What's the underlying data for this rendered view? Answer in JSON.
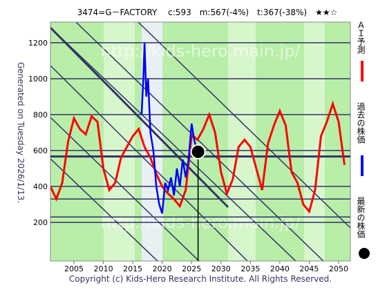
{
  "chart_data": {
    "type": "line",
    "title": "3474=G－FACTORY　 c:593　m:567(-4%)　t:367(-38%)　★★☆",
    "watermark": "http://kids-hero.main.jp/",
    "generated": "Generated on Tuesday 2026/1/13.",
    "copyright": "Copyright (c) Kids-Hero Research Institute. All Rights Reserved.",
    "xlim": [
      2001,
      2052
    ],
    "xticks": [
      2005,
      2010,
      2015,
      2020,
      2025,
      2030,
      2035,
      2040,
      2045,
      2050
    ],
    "ylim": [
      -15,
      1315
    ],
    "yticks": [
      200,
      400,
      600,
      800,
      1000,
      1200
    ],
    "hlines": [
      567,
      330,
      230
    ],
    "series": [
      {
        "name": "ＡＩ予測",
        "color": "#ff0000",
        "x": [
          2001,
          2002,
          2003,
          2004,
          2005,
          2006,
          2007,
          2008,
          2009,
          2010,
          2011,
          2012,
          2013,
          2014,
          2015,
          2016,
          2017,
          2018,
          2019,
          2020,
          2021,
          2022,
          2023,
          2024,
          2025,
          2026,
          2027,
          2028,
          2029,
          2030,
          2031,
          2032,
          2033,
          2034,
          2035,
          2036,
          2037,
          2038,
          2039,
          2040,
          2041,
          2042,
          2043,
          2044,
          2045,
          2046,
          2047,
          2048,
          2049,
          2050,
          2051
        ],
        "values": [
          400,
          330,
          420,
          650,
          780,
          720,
          690,
          790,
          760,
          500,
          380,
          420,
          560,
          620,
          680,
          720,
          620,
          560,
          470,
          400,
          360,
          330,
          290,
          380,
          680,
          660,
          720,
          800,
          700,
          480,
          360,
          440,
          620,
          660,
          620,
          500,
          380,
          640,
          740,
          820,
          740,
          480,
          420,
          300,
          260,
          380,
          680,
          760,
          860,
          760,
          520
        ]
      },
      {
        "name": "過去の株価",
        "color": "#0000ff",
        "x": [
          2016.5,
          2016.8,
          2017,
          2017.3,
          2017.6,
          2018,
          2018.5,
          2019,
          2019.5,
          2020,
          2020.5,
          2021,
          2021.5,
          2022,
          2022.5,
          2023,
          2023.5,
          2024,
          2024.5,
          2025,
          2025.5,
          2026.1
        ],
        "values": [
          800,
          1000,
          1200,
          900,
          1000,
          700,
          600,
          400,
          300,
          250,
          420,
          380,
          450,
          350,
          500,
          400,
          550,
          450,
          550,
          750,
          650,
          593
        ]
      }
    ],
    "latest": {
      "name": "最新の株価",
      "x": 2026.1,
      "value": 593,
      "color": "#000000"
    }
  }
}
